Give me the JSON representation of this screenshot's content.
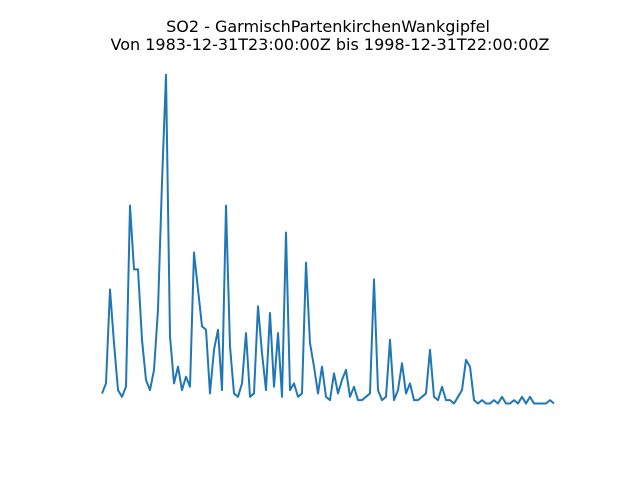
{
  "chart_data": {
    "type": "line",
    "title": "SO2 - GarmischPartenkirchenWankgipfel",
    "subtitle": "Von 1983-12-31T23:00:00Z bis 1998-12-31T22:00:00Z",
    "color": "#1f77b4",
    "values": [
      5,
      8,
      36,
      20,
      6,
      4,
      7,
      61,
      42,
      42,
      21,
      9,
      6,
      12,
      30,
      68,
      100,
      22,
      8,
      13,
      6,
      10,
      7,
      47,
      36,
      25,
      24,
      5,
      18,
      24,
      6,
      61,
      19,
      5,
      4,
      8,
      23,
      4,
      5,
      31,
      17,
      6,
      29,
      7,
      23,
      4,
      53,
      6,
      8,
      4,
      5,
      44,
      20,
      13,
      5,
      13,
      4,
      3,
      11,
      5,
      9,
      12,
      4,
      7,
      3,
      3,
      4,
      5,
      39,
      6,
      3,
      4,
      21,
      3,
      6,
      14,
      5,
      8,
      3,
      3,
      4,
      5,
      18,
      4,
      3,
      7,
      3,
      3,
      2,
      4,
      6,
      15,
      13,
      3,
      2,
      3,
      2,
      2,
      3,
      2,
      4,
      2,
      2,
      3,
      2,
      4,
      2,
      4,
      2,
      2,
      2,
      2,
      3,
      2
    ],
    "xlim": [
      -5.5,
      118.5
    ],
    "ylim": [
      -5,
      105
    ]
  }
}
